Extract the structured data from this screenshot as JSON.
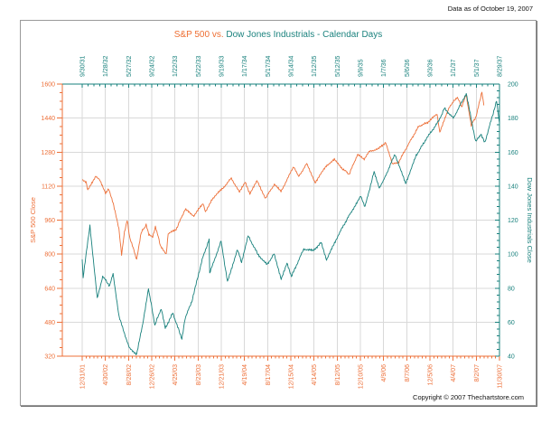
{
  "page": {
    "data_as_of": "Data as of October 19, 2007",
    "copyright": "Copyright © 2007 Thechartstore.com"
  },
  "chart_data": {
    "type": "line",
    "title": {
      "primary": "S&P 500 vs.",
      "secondary": " Dow Jones Industrials - Calendar Days"
    },
    "colors": {
      "sp500": "#ed7039",
      "dow": "#17807c",
      "grid": "#d9d9d9"
    },
    "legend": "none",
    "grid": true,
    "x_domain_days": 2160,
    "left_axis": {
      "label": "S&P 500 Close",
      "min": 320,
      "max": 1600,
      "tick_step": 160,
      "tick_labels": [
        "1600",
        "1440",
        "1280",
        "1120",
        "960",
        "800",
        "640",
        "480",
        "320"
      ]
    },
    "right_axis": {
      "label": "Dow Jones Industrials Close",
      "min": 40,
      "max": 200,
      "tick_step": 20,
      "tick_labels": [
        "200",
        "180",
        "160",
        "140",
        "120",
        "100",
        "80",
        "60",
        "40"
      ]
    },
    "top_axis": {
      "tick_labels": [
        "9/30/31",
        "1/28/32",
        "5/27/32",
        "9/24/32",
        "1/22/33",
        "5/22/33",
        "9/19/33",
        "1/17/34",
        "5/17/34",
        "9/14/34",
        "1/12/35",
        "5/12/35",
        "9/9/35",
        "1/7/36",
        "5/6/36",
        "9/3/36",
        "1/1/37",
        "5/1/37",
        "8/29/37"
      ]
    },
    "bottom_axis": {
      "tick_labels": [
        "12/31/01",
        "4/30/02",
        "8/28/02",
        "12/26/02",
        "4/25/03",
        "8/23/03",
        "12/21/03",
        "4/19/04",
        "8/17/04",
        "12/15/04",
        "4/14/05",
        "8/12/05",
        "12/10/05",
        "4/9/06",
        "8/7/06",
        "12/5/06",
        "4/4/07",
        "8/2/07",
        "11/30/07"
      ]
    },
    "series": [
      {
        "name": "S&P 500",
        "axis": "left",
        "x_axis": "bottom",
        "color_key": "sp500",
        "points": [
          [
            0,
            1148
          ],
          [
            20,
            1138
          ],
          [
            29,
            1100
          ],
          [
            70,
            1168
          ],
          [
            91,
            1147
          ],
          [
            121,
            1086
          ],
          [
            137,
            1106
          ],
          [
            160,
            1040
          ],
          [
            176,
            976
          ],
          [
            190,
            921
          ],
          [
            204,
            797
          ],
          [
            219,
            905
          ],
          [
            233,
            962
          ],
          [
            246,
            878
          ],
          [
            267,
            819
          ],
          [
            282,
            776
          ],
          [
            305,
            900
          ],
          [
            331,
            938
          ],
          [
            345,
            890
          ],
          [
            365,
            880
          ],
          [
            379,
            931
          ],
          [
            405,
            841
          ],
          [
            435,
            800
          ],
          [
            445,
            895
          ],
          [
            486,
            916
          ],
          [
            533,
            1011
          ],
          [
            578,
            980
          ],
          [
            626,
            1039
          ],
          [
            638,
            996
          ],
          [
            672,
            1059
          ],
          [
            730,
            1112
          ],
          [
            772,
            1157
          ],
          [
            814,
            1091
          ],
          [
            844,
            1140
          ],
          [
            868,
            1084
          ],
          [
            905,
            1144
          ],
          [
            949,
            1063
          ],
          [
            995,
            1129
          ],
          [
            1029,
            1094
          ],
          [
            1095,
            1213
          ],
          [
            1120,
            1164
          ],
          [
            1162,
            1225
          ],
          [
            1206,
            1137
          ],
          [
            1264,
            1216
          ],
          [
            1305,
            1245
          ],
          [
            1342,
            1206
          ],
          [
            1382,
            1176
          ],
          [
            1425,
            1268
          ],
          [
            1460,
            1248
          ],
          [
            1488,
            1284
          ],
          [
            1533,
            1295
          ],
          [
            1571,
            1326
          ],
          [
            1605,
            1223
          ],
          [
            1639,
            1234
          ],
          [
            1685,
            1311
          ],
          [
            1742,
            1401
          ],
          [
            1785,
            1418
          ],
          [
            1837,
            1459
          ],
          [
            1851,
            1374
          ],
          [
            1902,
            1495
          ],
          [
            1942,
            1539
          ],
          [
            1964,
            1492
          ],
          [
            1987,
            1553
          ],
          [
            2014,
            1406
          ],
          [
            2040,
            1450
          ],
          [
            2069,
            1565
          ],
          [
            2079,
            1500
          ]
        ]
      },
      {
        "name": "Dow Jones Industrials",
        "axis": "right",
        "x_axis": "top",
        "color_key": "dow",
        "points": [
          [
            0,
            96.6
          ],
          [
            5,
            86.5
          ],
          [
            40,
            116.8
          ],
          [
            78,
            73.8
          ],
          [
            106,
            87.0
          ],
          [
            142,
            81.4
          ],
          [
            160,
            88.4
          ],
          [
            191,
            63.1
          ],
          [
            244,
            44.7
          ],
          [
            282,
            41.2
          ],
          [
            313,
            58.5
          ],
          [
            343,
            79.9
          ],
          [
            376,
            58.3
          ],
          [
            409,
            68.0
          ],
          [
            430,
            56.4
          ],
          [
            469,
            65.3
          ],
          [
            516,
            50.2
          ],
          [
            532,
            62.1
          ],
          [
            568,
            72.4
          ],
          [
            621,
            96.8
          ],
          [
            657,
            108.7
          ],
          [
            660,
            88.7
          ],
          [
            719,
            107.7
          ],
          [
            752,
            83.6
          ],
          [
            803,
            102.7
          ],
          [
            825,
            95.4
          ],
          [
            859,
            110.7
          ],
          [
            909,
            100.0
          ],
          [
            957,
            93.7
          ],
          [
            993,
            100.1
          ],
          [
            1030,
            85.5
          ],
          [
            1060,
            94.9
          ],
          [
            1083,
            86.8
          ],
          [
            1147,
            103.1
          ],
          [
            1195,
            102.0
          ],
          [
            1237,
            106.7
          ],
          [
            1265,
            96.7
          ],
          [
            1330,
            112.2
          ],
          [
            1391,
            124.5
          ],
          [
            1442,
            134.0
          ],
          [
            1464,
            127.9
          ],
          [
            1511,
            148.4
          ],
          [
            1538,
            139.1
          ],
          [
            1559,
            143.0
          ],
          [
            1619,
            158.8
          ],
          [
            1674,
            141.5
          ],
          [
            1729,
            158.0
          ],
          [
            1776,
            166.9
          ],
          [
            1846,
            178.4
          ],
          [
            1875,
            185.7
          ],
          [
            1921,
            179.9
          ],
          [
            1988,
            194.4
          ],
          [
            2037,
            166.1
          ],
          [
            2063,
            170.5
          ],
          [
            2084,
            165.5
          ],
          [
            2145,
            190.0
          ],
          [
            2160,
            177.1
          ]
        ]
      }
    ]
  }
}
